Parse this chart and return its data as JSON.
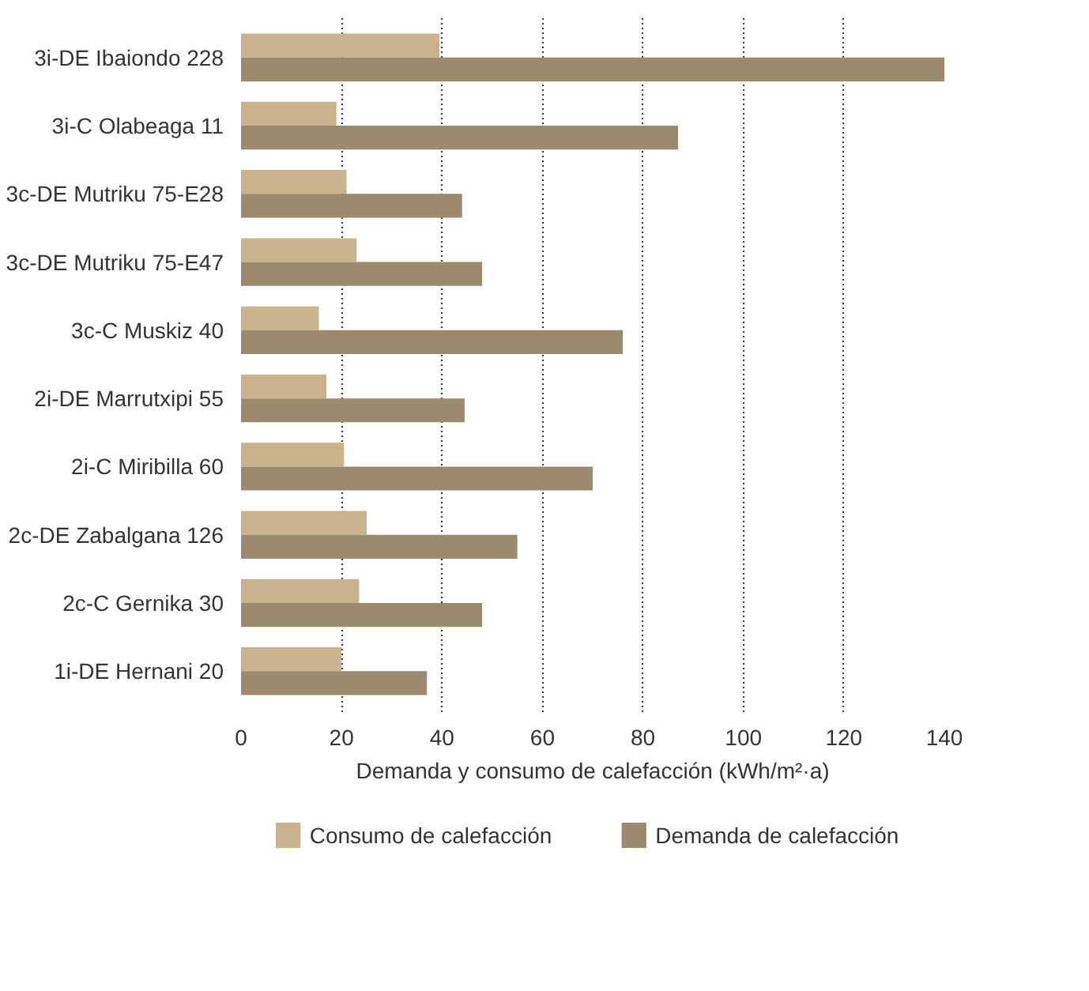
{
  "chart_data": {
    "type": "bar",
    "orientation": "horizontal",
    "xlabel": "Demanda y consumo de calefacción (kWh/m²·a)",
    "categories": [
      "3i-DE Ibaiondo 228",
      "3i-C Olabeaga 11",
      "3c-DE Mutriku 75-E28",
      "3c-DE Mutriku 75-E47",
      "3c-C Muskiz 40",
      "2i-DE Marrutxipi 55",
      "2i-C Miribilla 60",
      "2c-DE Zabalgana 126",
      "2c-C Gernika 30",
      "1i-DE Hernani 20"
    ],
    "series": [
      {
        "name": "Consumo de calefacción",
        "color": "#c8b38c",
        "values": [
          39.5,
          19,
          21,
          23,
          15.5,
          17,
          20.5,
          25,
          23.5,
          20
        ]
      },
      {
        "name": "Demanda de calefacción",
        "color": "#9b8a6d",
        "values": [
          140,
          87,
          44,
          48,
          76,
          44.5,
          70,
          55,
          48,
          37
        ]
      }
    ],
    "xlim": [
      0,
      140
    ],
    "xticks": [
      0,
      20,
      40,
      60,
      80,
      100,
      120,
      140
    ],
    "grid": "x",
    "legend": "bottom"
  }
}
